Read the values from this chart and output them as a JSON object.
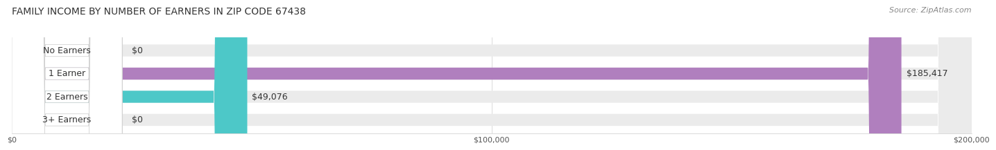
{
  "title": "FAMILY INCOME BY NUMBER OF EARNERS IN ZIP CODE 67438",
  "source": "Source: ZipAtlas.com",
  "categories": [
    "No Earners",
    "1 Earner",
    "2 Earners",
    "3+ Earners"
  ],
  "values": [
    0,
    185417,
    49076,
    0
  ],
  "value_labels": [
    "$0",
    "$185,417",
    "$49,076",
    "$0"
  ],
  "bar_colors": [
    "#90c8e0",
    "#b07fbe",
    "#4dc8c8",
    "#a8a8d8"
  ],
  "xlim": [
    0,
    200000
  ],
  "xtick_labels": [
    "$0",
    "$100,000",
    "$200,000"
  ],
  "title_fontsize": 10,
  "source_fontsize": 8,
  "label_fontsize": 9,
  "tick_fontsize": 8,
  "background_color": "#ffffff",
  "bar_height": 0.52
}
